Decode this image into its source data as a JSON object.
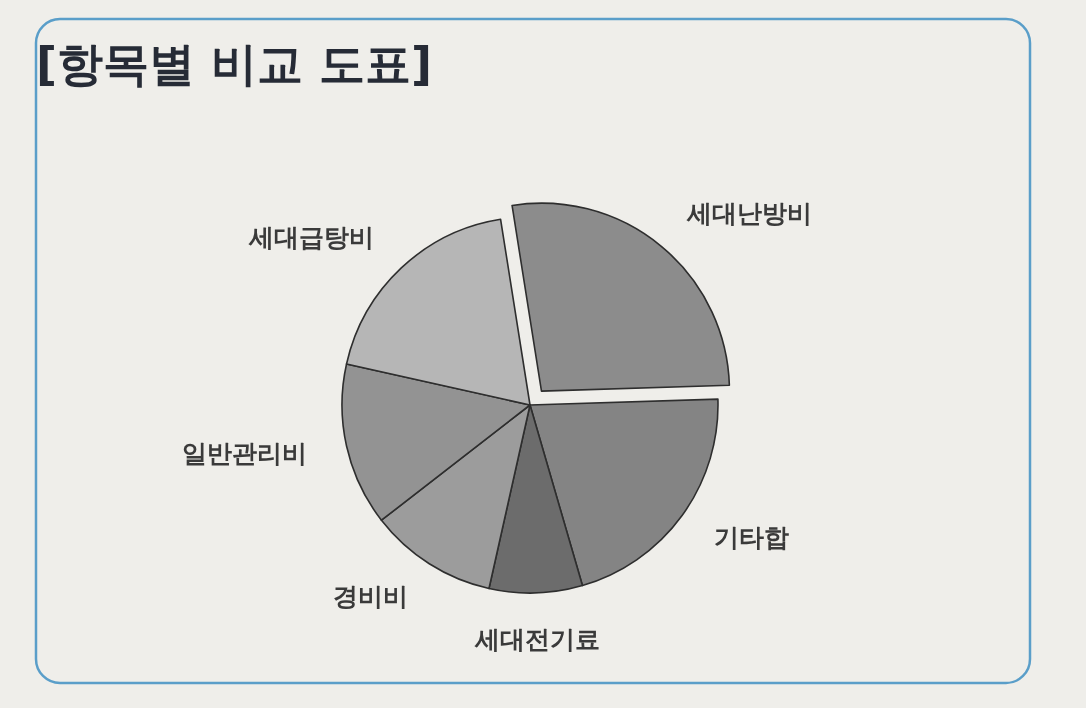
{
  "chart_data": {
    "type": "pie",
    "title": "[항목별 비교 도표]",
    "categories": [
      "세대난방비",
      "기타합",
      "세대전기료",
      "경비비",
      "일반관리비",
      "세대급탕비"
    ],
    "values": [
      27,
      21,
      8,
      11,
      14,
      19
    ],
    "colors": [
      "#8c8c8c",
      "#848484",
      "#6c6c6c",
      "#9c9c9c",
      "#939393",
      "#b6b6b6"
    ]
  }
}
